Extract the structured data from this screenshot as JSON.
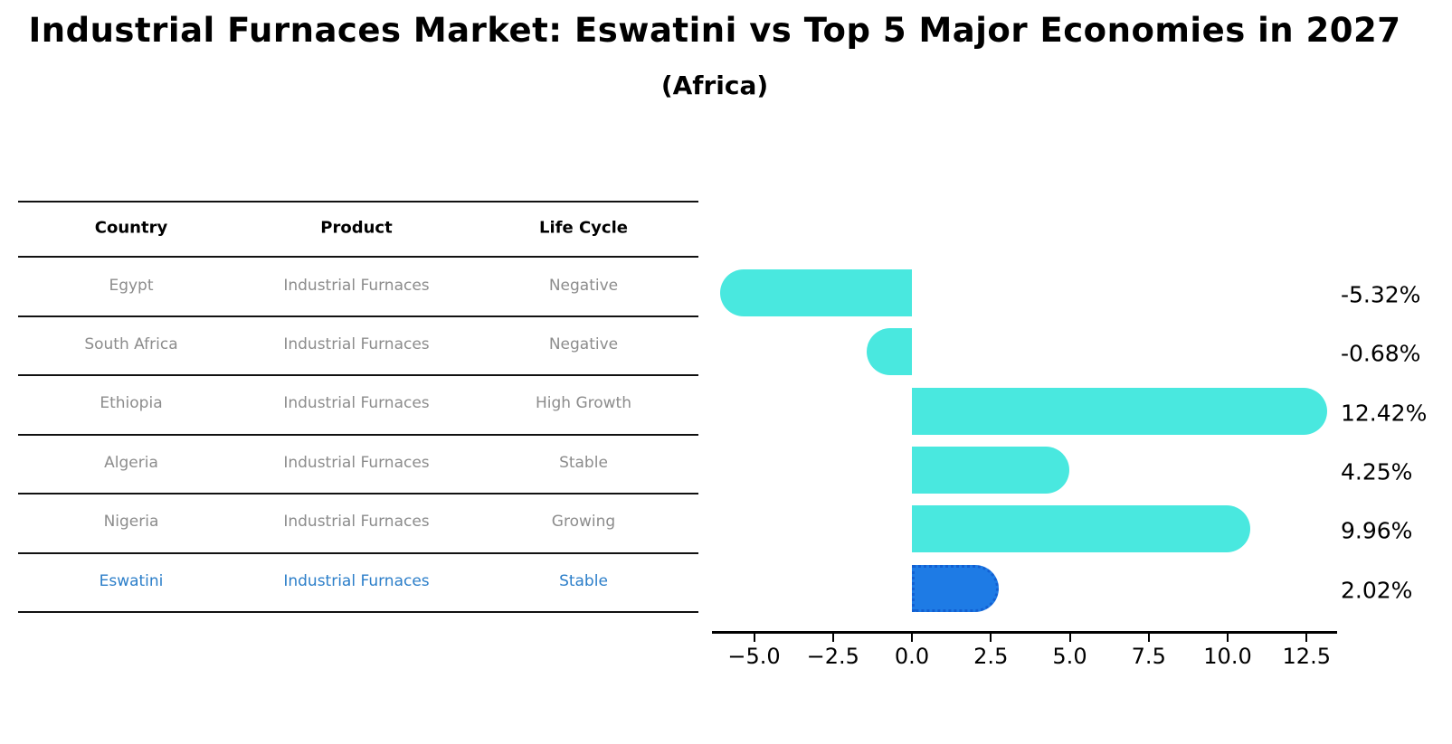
{
  "title": "Industrial Furnaces Market: Eswatini vs Top 5 Major Economies in 2027",
  "subtitle": "(Africa)",
  "colors": {
    "bar": "#49e8df",
    "bar_highlight": "#1e7be5",
    "bar_highlight_border": "#1360d2",
    "table_text": "#8c8c8c",
    "highlight_text": "#2b7ec9",
    "axis": "#000000"
  },
  "table": {
    "headers": [
      "Country",
      "Product",
      "Life Cycle"
    ],
    "rows": [
      {
        "country": "Egypt",
        "product": "Industrial Furnaces",
        "life_cycle": "Negative",
        "highlight": false
      },
      {
        "country": "South Africa",
        "product": "Industrial Furnaces",
        "life_cycle": "Negative",
        "highlight": false
      },
      {
        "country": "Ethiopia",
        "product": "Industrial Furnaces",
        "life_cycle": "High Growth",
        "highlight": false
      },
      {
        "country": "Algeria",
        "product": "Industrial Furnaces",
        "life_cycle": "Stable",
        "highlight": false
      },
      {
        "country": "Nigeria",
        "product": "Industrial Furnaces",
        "life_cycle": "Growing",
        "highlight": false
      },
      {
        "country": "Eswatini",
        "product": "Industrial Furnaces",
        "life_cycle": "Stable",
        "highlight": true
      }
    ]
  },
  "chart_data": {
    "type": "bar",
    "orientation": "horizontal",
    "title": "Industrial Furnaces Market: Eswatini vs Top 5 Major Economies in 2027",
    "subtitle": "(Africa)",
    "categories": [
      "Egypt",
      "South Africa",
      "Ethiopia",
      "Algeria",
      "Nigeria",
      "Eswatini"
    ],
    "values": [
      -5.32,
      -0.68,
      12.42,
      4.25,
      9.96,
      2.02
    ],
    "value_labels": [
      "-5.32%",
      "-0.68%",
      "12.42%",
      "4.25%",
      "9.96%",
      "2.02%"
    ],
    "unit": "%",
    "highlight_index": 5,
    "xlabel": "",
    "ylabel": "",
    "xlim": [
      -6.3,
      13.5
    ],
    "grid": false,
    "legend": "none",
    "x_tick_values": [
      -5.0,
      -2.5,
      0.0,
      2.5,
      5.0,
      7.5,
      10.0,
      12.5
    ],
    "x_ticks": [
      "−5.0",
      "−2.5",
      "0.0",
      "2.5",
      "5.0",
      "7.5",
      "10.0",
      "12.5"
    ]
  }
}
